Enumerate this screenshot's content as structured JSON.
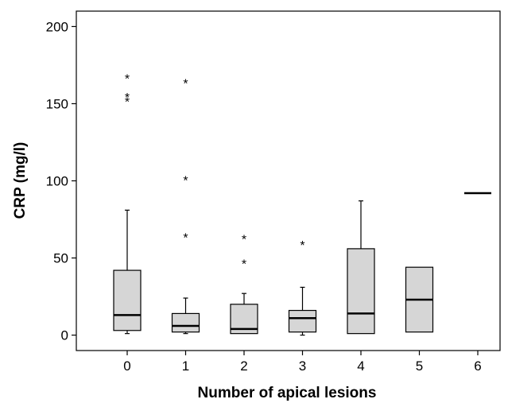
{
  "chart_data": {
    "type": "box",
    "xlabel": "Number of apical lesions",
    "ylabel": "CRP (mg/l)",
    "categories": [
      "0",
      "1",
      "2",
      "3",
      "4",
      "5",
      "6"
    ],
    "ylim": [
      -10,
      210
    ],
    "yticks": [
      0,
      50,
      100,
      150,
      200
    ],
    "grid": false,
    "colors": {
      "box_fill": "#d6d6d6",
      "stroke": "#000000",
      "background": "#ffffff"
    },
    "outlier_symbol": "*",
    "boxes": [
      {
        "category": "0",
        "whisker_low": 1,
        "q1": 3,
        "median": 13,
        "q3": 42,
        "whisker_high": 81,
        "outliers": [
          154,
          157,
          169
        ]
      },
      {
        "category": "1",
        "whisker_low": 1,
        "q1": 2,
        "median": 6,
        "q3": 14,
        "whisker_high": 24,
        "outliers": [
          66,
          103,
          166
        ]
      },
      {
        "category": "2",
        "whisker_low": 1,
        "q1": 1,
        "median": 4,
        "q3": 20,
        "whisker_high": 27,
        "outliers": [
          49,
          65
        ]
      },
      {
        "category": "3",
        "whisker_low": 0,
        "q1": 2,
        "median": 11,
        "q3": 16,
        "whisker_high": 31,
        "outliers": [
          61
        ]
      },
      {
        "category": "4",
        "whisker_low": 1,
        "q1": 1,
        "median": 14,
        "q3": 56,
        "whisker_high": 87,
        "outliers": []
      },
      {
        "category": "5",
        "whisker_low": 2,
        "q1": 2,
        "median": 23,
        "q3": 44,
        "whisker_high": 44,
        "outliers": []
      },
      {
        "category": "6",
        "whisker_low": 92,
        "q1": 92,
        "median": 92,
        "q3": 92,
        "whisker_high": 92,
        "outliers": []
      }
    ]
  }
}
